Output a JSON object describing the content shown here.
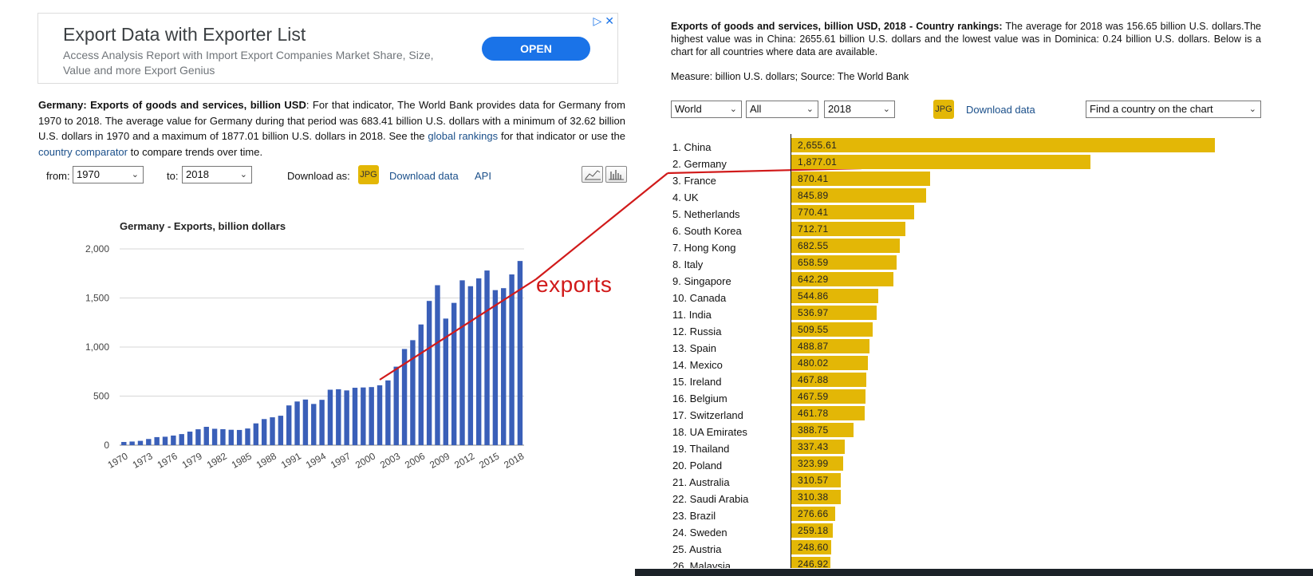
{
  "ad": {
    "title": "Export Data with Exporter List",
    "description": "Access Analysis Report with Import Export Companies Market Share, Size, Value and more Export Genius",
    "open_label": "OPEN",
    "adchoices_icon": "play-triangle-icon",
    "close_icon": "close-icon"
  },
  "left": {
    "para_bold": "Germany: Exports of goods and services, billion USD",
    "para_text_1": ": For that indicator, The World Bank provides data for Germany from 1970 to 2018. The average value for Germany during that period was 683.41 billion U.S. dollars with a minimum of 32.62 billion U.S. dollars in 1970 and a maximum of 1877.01 billion U.S. dollars in 2018. See the ",
    "link_rankings": "global rankings",
    "para_text_2": " for that indicator or use the ",
    "link_comparator": "country comparator",
    "para_text_3": " to compare trends over time.",
    "from_label": "from:",
    "from_value": "1970",
    "to_label": "to:",
    "to_value": "2018",
    "download_as_label": "Download as:",
    "jpg_label": "JPG",
    "download_data_label": "Download data",
    "api_label": "API",
    "line_chart_icon": "line-chart-icon",
    "bar_chart_icon": "bar-chart-icon"
  },
  "annotation": "exports",
  "right": {
    "para_bold": "Exports of goods and services, billion USD, 2018 - Country rankings:",
    "para_text": " The average for 2018 was 156.65 billion U.S. dollars.The highest value was in China: 2655.61 billion U.S. dollars and the lowest value was in Dominica: 0.24 billion U.S. dollars. Below is a chart for all countries where data are available.",
    "measure": "Measure: billion U.S. dollars; Source: The World Bank",
    "region_value": "World",
    "group_value": "All",
    "year_value": "2018",
    "jpg_label": "JPG",
    "download_data_label": "Download data",
    "find_country_placeholder": "Find a country on the chart"
  },
  "colors": {
    "bar_blue": "#3a5fb8",
    "bar_gold": "#e3b706",
    "annotation_red": "#d11a1a",
    "link_blue": "#1a4f8a",
    "ad_button": "#1a73e8"
  },
  "chart_data": [
    {
      "type": "bar",
      "title": "Germany - Exports, billion dollars",
      "x": [
        1970,
        1971,
        1972,
        1973,
        1974,
        1975,
        1976,
        1977,
        1978,
        1979,
        1980,
        1981,
        1982,
        1983,
        1984,
        1985,
        1986,
        1987,
        1988,
        1989,
        1990,
        1991,
        1992,
        1993,
        1994,
        1995,
        1996,
        1997,
        1998,
        1999,
        2000,
        2001,
        2002,
        2003,
        2004,
        2005,
        2006,
        2007,
        2008,
        2009,
        2010,
        2011,
        2012,
        2013,
        2014,
        2015,
        2016,
        2017,
        2018
      ],
      "values": [
        32.62,
        37,
        44,
        63,
        82,
        86,
        98,
        113,
        138,
        162,
        187,
        167,
        163,
        157,
        155,
        170,
        222,
        266,
        284,
        300,
        405,
        445,
        465,
        420,
        462,
        565,
        570,
        558,
        585,
        588,
        592,
        610,
        660,
        800,
        980,
        1070,
        1230,
        1470,
        1630,
        1290,
        1450,
        1680,
        1620,
        1700,
        1780,
        1580,
        1600,
        1740,
        1877.01
      ],
      "xticks": [
        "1970",
        "1973",
        "1976",
        "1979",
        "1982",
        "1985",
        "1988",
        "1991",
        "1994",
        "1997",
        "2000",
        "2003",
        "2006",
        "2009",
        "2012",
        "2015",
        "2018"
      ],
      "yticks": [
        "0",
        "500",
        "1,000",
        "1,500",
        "2,000"
      ],
      "ylim": [
        0,
        2000
      ],
      "grid": true
    },
    {
      "type": "bar",
      "orientation": "horizontal",
      "categories": [
        "1. China",
        "2. Germany",
        "3. France",
        "4. UK",
        "5. Netherlands",
        "6. South Korea",
        "7. Hong Kong",
        "8. Italy",
        "9. Singapore",
        "10. Canada",
        "11. India",
        "12. Russia",
        "13. Spain",
        "14. Mexico",
        "15. Ireland",
        "16. Belgium",
        "17. Switzerland",
        "18. UA Emirates",
        "19. Thailand",
        "20. Poland",
        "21. Australia",
        "22. Saudi Arabia",
        "23. Brazil",
        "24. Sweden",
        "25. Austria",
        "26. Malaysia"
      ],
      "values": [
        2655.61,
        1877.01,
        870.41,
        845.89,
        770.41,
        712.71,
        682.55,
        658.59,
        642.29,
        544.86,
        536.97,
        509.55,
        488.87,
        480.02,
        467.88,
        467.59,
        461.78,
        388.75,
        337.43,
        323.99,
        310.57,
        310.38,
        276.66,
        259.18,
        248.6,
        246.92
      ],
      "value_labels": [
        "2,655.61",
        "1,877.01",
        "870.41",
        "845.89",
        "770.41",
        "712.71",
        "682.55",
        "658.59",
        "642.29",
        "544.86",
        "536.97",
        "509.55",
        "488.87",
        "480.02",
        "467.88",
        "467.59",
        "461.78",
        "388.75",
        "337.43",
        "323.99",
        "310.57",
        "310.38",
        "276.66",
        "259.18",
        "248.60",
        "246.92"
      ],
      "xlim": [
        0,
        2655.61
      ]
    }
  ]
}
